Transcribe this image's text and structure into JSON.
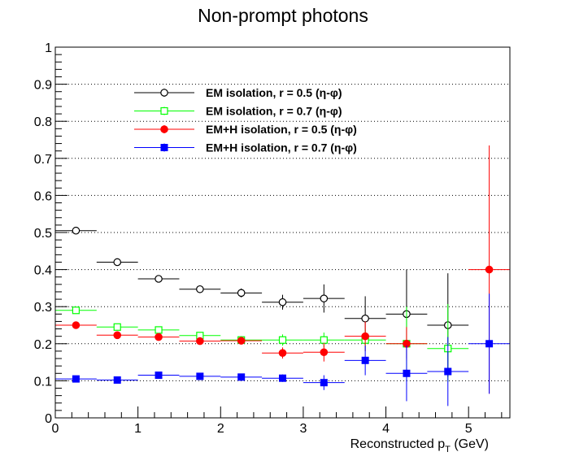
{
  "chart_data": {
    "type": "scatter",
    "title": "Non-prompt photons",
    "xlabel_main": "Reconstructed p",
    "xlabel_sub": "T",
    "xlabel_unit": " (GeV)",
    "ylabel": "",
    "xlim": [
      0,
      5.5
    ],
    "ylim": [
      0,
      1
    ],
    "x_ticks": [
      "0",
      "1",
      "2",
      "3",
      "4",
      "5"
    ],
    "y_ticks": [
      "0",
      "0.1",
      "0.2",
      "0.3",
      "0.4",
      "0.5",
      "0.6",
      "0.7",
      "0.8",
      "0.9",
      "1"
    ],
    "grid": "horizontal dotted",
    "legend_position": "top-left",
    "series": [
      {
        "name": "EM isolation, r = 0.5 (η-φ)",
        "color": "#000000",
        "marker": "open-circle",
        "points": [
          {
            "x": 0.25,
            "y": 0.505,
            "xerr": 0.25,
            "yerr_lo": 0.005,
            "yerr_hi": 0.005
          },
          {
            "x": 0.75,
            "y": 0.42,
            "xerr": 0.25,
            "yerr_lo": 0.005,
            "yerr_hi": 0.005
          },
          {
            "x": 1.25,
            "y": 0.375,
            "xerr": 0.25,
            "yerr_lo": 0.007,
            "yerr_hi": 0.007
          },
          {
            "x": 1.75,
            "y": 0.347,
            "xerr": 0.25,
            "yerr_lo": 0.008,
            "yerr_hi": 0.008
          },
          {
            "x": 2.25,
            "y": 0.337,
            "xerr": 0.25,
            "yerr_lo": 0.012,
            "yerr_hi": 0.012
          },
          {
            "x": 2.75,
            "y": 0.312,
            "xerr": 0.25,
            "yerr_lo": 0.02,
            "yerr_hi": 0.02
          },
          {
            "x": 3.25,
            "y": 0.322,
            "xerr": 0.25,
            "yerr_lo": 0.038,
            "yerr_hi": 0.038
          },
          {
            "x": 3.75,
            "y": 0.268,
            "xerr": 0.25,
            "yerr_lo": 0.06,
            "yerr_hi": 0.06
          },
          {
            "x": 4.25,
            "y": 0.28,
            "xerr": 0.25,
            "yerr_lo": 0.12,
            "yerr_hi": 0.12
          },
          {
            "x": 4.75,
            "y": 0.25,
            "xerr": 0.25,
            "yerr_lo": 0.14,
            "yerr_hi": 0.14
          }
        ]
      },
      {
        "name": "EM isolation, r = 0.7 (η-φ)",
        "color": "#00ff00",
        "marker": "open-square",
        "points": [
          {
            "x": 0.25,
            "y": 0.29,
            "xerr": 0.25,
            "yerr_lo": 0.005,
            "yerr_hi": 0.005
          },
          {
            "x": 0.75,
            "y": 0.245,
            "xerr": 0.25,
            "yerr_lo": 0.005,
            "yerr_hi": 0.005
          },
          {
            "x": 1.25,
            "y": 0.237,
            "xerr": 0.25,
            "yerr_lo": 0.006,
            "yerr_hi": 0.006
          },
          {
            "x": 1.75,
            "y": 0.222,
            "xerr": 0.25,
            "yerr_lo": 0.007,
            "yerr_hi": 0.007
          },
          {
            "x": 2.25,
            "y": 0.21,
            "xerr": 0.25,
            "yerr_lo": 0.01,
            "yerr_hi": 0.01
          },
          {
            "x": 2.75,
            "y": 0.21,
            "xerr": 0.25,
            "yerr_lo": 0.015,
            "yerr_hi": 0.015
          },
          {
            "x": 3.25,
            "y": 0.21,
            "xerr": 0.25,
            "yerr_lo": 0.02,
            "yerr_hi": 0.02
          },
          {
            "x": 3.75,
            "y": 0.21,
            "xerr": 0.25,
            "yerr_lo": 0.03,
            "yerr_hi": 0.03
          },
          {
            "x": 4.25,
            "y": 0.2,
            "xerr": 0.25,
            "yerr_lo": 0.1,
            "yerr_hi": 0.1
          },
          {
            "x": 4.75,
            "y": 0.187,
            "xerr": 0.25,
            "yerr_lo": 0.09,
            "yerr_hi": 0.12
          }
        ]
      },
      {
        "name": "EM+H isolation, r = 0.5 (η-φ)",
        "color": "#ff0000",
        "marker": "filled-circle",
        "points": [
          {
            "x": 0.25,
            "y": 0.25,
            "xerr": 0.25,
            "yerr_lo": 0.005,
            "yerr_hi": 0.005
          },
          {
            "x": 0.75,
            "y": 0.223,
            "xerr": 0.25,
            "yerr_lo": 0.005,
            "yerr_hi": 0.005
          },
          {
            "x": 1.25,
            "y": 0.218,
            "xerr": 0.25,
            "yerr_lo": 0.005,
            "yerr_hi": 0.005
          },
          {
            "x": 1.75,
            "y": 0.207,
            "xerr": 0.25,
            "yerr_lo": 0.007,
            "yerr_hi": 0.007
          },
          {
            "x": 2.25,
            "y": 0.208,
            "xerr": 0.25,
            "yerr_lo": 0.008,
            "yerr_hi": 0.008
          },
          {
            "x": 2.75,
            "y": 0.175,
            "xerr": 0.25,
            "yerr_lo": 0.015,
            "yerr_hi": 0.015
          },
          {
            "x": 3.25,
            "y": 0.177,
            "xerr": 0.25,
            "yerr_lo": 0.025,
            "yerr_hi": 0.025
          },
          {
            "x": 3.75,
            "y": 0.22,
            "xerr": 0.25,
            "yerr_lo": 0.04,
            "yerr_hi": 0.04
          },
          {
            "x": 4.25,
            "y": 0.2,
            "xerr": 0.25,
            "yerr_lo": 0.045,
            "yerr_hi": 0.045
          },
          {
            "x": 5.25,
            "y": 0.4,
            "xerr": 0.25,
            "yerr_lo": 0.335,
            "yerr_hi": 0.335
          }
        ]
      },
      {
        "name": "EM+H isolation, r = 0.7 (η-φ)",
        "color": "#0000ff",
        "marker": "filled-square",
        "points": [
          {
            "x": 0.25,
            "y": 0.105,
            "xerr": 0.25,
            "yerr_lo": 0.004,
            "yerr_hi": 0.004
          },
          {
            "x": 0.75,
            "y": 0.102,
            "xerr": 0.25,
            "yerr_lo": 0.004,
            "yerr_hi": 0.004
          },
          {
            "x": 1.25,
            "y": 0.115,
            "xerr": 0.25,
            "yerr_lo": 0.004,
            "yerr_hi": 0.004
          },
          {
            "x": 1.75,
            "y": 0.112,
            "xerr": 0.25,
            "yerr_lo": 0.005,
            "yerr_hi": 0.005
          },
          {
            "x": 2.25,
            "y": 0.11,
            "xerr": 0.25,
            "yerr_lo": 0.007,
            "yerr_hi": 0.007
          },
          {
            "x": 2.75,
            "y": 0.107,
            "xerr": 0.25,
            "yerr_lo": 0.01,
            "yerr_hi": 0.01
          },
          {
            "x": 3.25,
            "y": 0.095,
            "xerr": 0.25,
            "yerr_lo": 0.02,
            "yerr_hi": 0.02
          },
          {
            "x": 3.75,
            "y": 0.155,
            "xerr": 0.25,
            "yerr_lo": 0.04,
            "yerr_hi": 0.04
          },
          {
            "x": 4.25,
            "y": 0.12,
            "xerr": 0.25,
            "yerr_lo": 0.075,
            "yerr_hi": 0.075
          },
          {
            "x": 4.75,
            "y": 0.125,
            "xerr": 0.25,
            "yerr_lo": 0.093,
            "yerr_hi": 0.093
          },
          {
            "x": 5.25,
            "y": 0.2,
            "xerr": 0.25,
            "yerr_lo": 0.135,
            "yerr_hi": 0.135
          }
        ]
      }
    ]
  }
}
